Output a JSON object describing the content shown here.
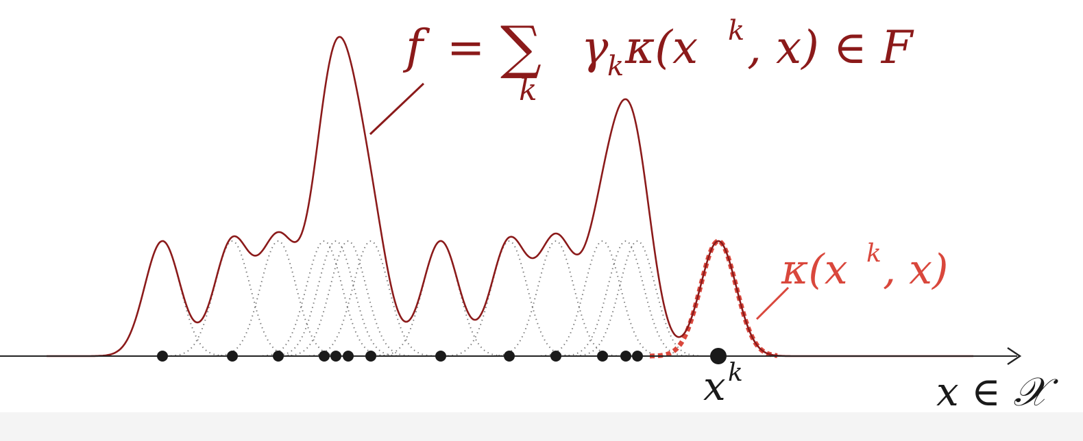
{
  "colors": {
    "sum_curve": "#8b1a1a",
    "kernel_highlight": "#d9473c",
    "kernels": "#7a7a7a",
    "axis": "#222222",
    "points": "#1a1a1a",
    "page_background": "#f4f4f4"
  },
  "labels": {
    "f": "f",
    "equals": "=",
    "sum": "∑",
    "sum_index": "k",
    "gamma": "γ",
    "gamma_sub": "k",
    "kappa": "κ(x",
    "kappa_sup": "k",
    "kappa_rest": ", x) ∈ F",
    "kernel": "κ(x",
    "kernel_sup": "k",
    "kernel_rest": ", x)",
    "xk": "x",
    "xk_sup": "k",
    "domain": "x ∈ 𝒳"
  }
}
